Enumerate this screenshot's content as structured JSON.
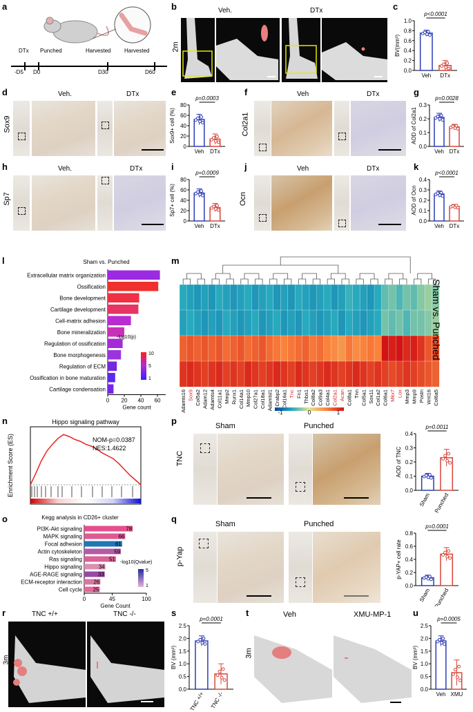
{
  "panel_labels": {
    "a": "a",
    "b": "b",
    "c": "c",
    "d": "d",
    "e": "e",
    "f": "f",
    "g": "g",
    "h": "h",
    "i": "i",
    "j": "j",
    "k": "k",
    "l": "l",
    "m": "m",
    "n": "n",
    "o": "o",
    "p": "p",
    "q": "q",
    "r": "r",
    "s": "s",
    "t": "t",
    "u": "u"
  },
  "panel_a": {
    "events": [
      "DTx",
      "Punched",
      "Harvested",
      "Harvested"
    ],
    "days": [
      "-D5",
      "D0",
      "D30",
      "D60"
    ]
  },
  "panel_b": {
    "row_label": "2m",
    "veh": "Veh.",
    "dtx": "DTx"
  },
  "panel_d": {
    "row_label": "Sox9",
    "veh": "Veh.",
    "dtx": "DTx"
  },
  "panel_f": {
    "row_label": "Col2a1",
    "veh": "Veh",
    "dtx": "DTx"
  },
  "panel_h": {
    "row_label": "Sp7",
    "veh": "Veh.",
    "dtx": "DTx"
  },
  "panel_j": {
    "row_label": "Ocn",
    "veh": "Veh",
    "dtx": "DTx"
  },
  "panel_p": {
    "row_label": "TNC",
    "sham": "Sham",
    "punched": "Punched"
  },
  "panel_q": {
    "row_label": "p-Yap",
    "sham": "Sham",
    "punched": "Punched"
  },
  "panel_r": {
    "row_label": "3m",
    "left": "TNC +/+",
    "right": "TNC -/-"
  },
  "panel_t": {
    "row_label": "3m",
    "left": "Veh",
    "right": "XMU-MP-1"
  },
  "chart_data": [
    {
      "id": "c",
      "type": "bar",
      "categories": [
        "Veh",
        "DTx"
      ],
      "values": [
        0.75,
        0.1
      ],
      "errors": [
        0.06,
        0.1
      ],
      "colors": [
        "#2b3bb5",
        "#d6453a"
      ],
      "ylabel": "BV(mm³)",
      "yticks": [
        "0.0",
        "0.2",
        "0.4",
        "0.6",
        "0.8",
        "1.0"
      ],
      "ylim": [
        0,
        1.0
      ],
      "pval": "p<0.0001"
    },
    {
      "id": "e",
      "type": "bar",
      "categories": [
        "Veh",
        "DTx"
      ],
      "values": [
        52,
        14
      ],
      "errors": [
        10,
        10
      ],
      "colors": [
        "#2b3bb5",
        "#d6453a"
      ],
      "ylabel": "Sox9+ cell (%)",
      "yticks": [
        "0",
        "20",
        "40",
        "60",
        "80"
      ],
      "ylim": [
        0,
        80
      ],
      "pval": "p=0.0003"
    },
    {
      "id": "g",
      "type": "bar",
      "categories": [
        "Veh",
        "DTx"
      ],
      "values": [
        0.21,
        0.14
      ],
      "errors": [
        0.03,
        0.02
      ],
      "colors": [
        "#2b3bb5",
        "#d6453a"
      ],
      "ylabel": "AOD of Col2a1",
      "yticks": [
        "0.0",
        "0.1",
        "0.2",
        "0.3"
      ],
      "ylim": [
        0,
        0.3
      ],
      "pval": "p=0.0028"
    },
    {
      "id": "i",
      "type": "bar",
      "categories": [
        "Veh",
        "DTx"
      ],
      "values": [
        54,
        26
      ],
      "errors": [
        8,
        8
      ],
      "colors": [
        "#2b3bb5",
        "#d6453a"
      ],
      "ylabel": "Sp7+ cell (%)",
      "yticks": [
        "0",
        "20",
        "40",
        "60",
        "80"
      ],
      "ylim": [
        0,
        80
      ],
      "pval": "p=0.0009"
    },
    {
      "id": "k",
      "type": "bar",
      "categories": [
        "Veh",
        "DTx"
      ],
      "values": [
        0.26,
        0.14
      ],
      "errors": [
        0.03,
        0.02
      ],
      "colors": [
        "#2b3bb5",
        "#d6453a"
      ],
      "ylabel": "AOD of Ocn",
      "yticks": [
        "0.0",
        "0.1",
        "0.2",
        "0.3",
        "0.4"
      ],
      "ylim": [
        0,
        0.4
      ],
      "pval": "p<0.0001"
    },
    {
      "id": "l",
      "type": "bar_h",
      "title": "Sham vs. Punched",
      "categories": [
        "Extracellular matrix organization",
        "Ossification",
        "Bone development",
        "Cartilage development",
        "Cell-matrix adhesion",
        "Bone mineralization",
        "Regulation of ossification",
        "Bone morphogenesis",
        "Regulation of ECM",
        "Ossification in bone maturation",
        "Cartilage condensation"
      ],
      "values": [
        63,
        61,
        38,
        37,
        28,
        20,
        18,
        16,
        11,
        9,
        7
      ],
      "colors": [
        "#9b2ae0",
        "#f0302c",
        "#f03045",
        "#e63463",
        "#b92bd3",
        "#c930b8",
        "#a42ad8",
        "#9d33dc",
        "#7628e0",
        "#5a2aee",
        "#7626e6"
      ],
      "xlabel": "Gene count",
      "xticks": [
        "0",
        "20",
        "40",
        "60"
      ],
      "xlim": [
        0,
        70
      ],
      "legend_title": "-log10(p)",
      "legend_ticks": [
        "10",
        "5",
        "1"
      ]
    },
    {
      "id": "m",
      "type": "heatmap",
      "title": "Sham vs. Punched",
      "genes": [
        "Adamts16",
        "Sox9",
        "Col5a2",
        "Adam12",
        "Adamts4",
        "Col11a1",
        "Mmp2",
        "Runx1",
        "Col14a1",
        "Mmp10",
        "Col27a1",
        "Col18a1",
        "Adamtsl1",
        "Crabp2",
        "Col16a1",
        "Tnc",
        "Fn1",
        "Thbs1",
        "Col8a2",
        "Col9a3",
        "Col4a1",
        "Col2a1",
        "Acan",
        "Col8a1",
        "Tnn",
        "Col5a1",
        "Sox11",
        "Col1a2",
        "Col6a1",
        "Mkx7",
        "Lox",
        "Mmp3",
        "Mmp9",
        "Postn",
        "Wnt16",
        "Col6a5"
      ],
      "highlighted": [
        "Sox9",
        "Tnc",
        "Col2a1",
        "Acan",
        "Mkx7",
        "Lox"
      ],
      "colorbar_ticks": [
        "-1",
        "0",
        "1"
      ],
      "values": [
        [
          -0.5,
          -0.55,
          -0.6,
          -0.55,
          -0.6,
          -0.5,
          -0.55,
          -0.6,
          -0.55,
          -0.5,
          -0.6,
          -0.55,
          -0.5,
          -0.6,
          -0.55,
          -0.6,
          -0.5,
          -0.55,
          -0.6,
          -0.55,
          -0.5,
          -0.6,
          -0.55,
          -0.45,
          -0.5,
          -0.55,
          -0.6,
          -0.5,
          -0.35,
          -0.3,
          -0.4,
          -0.3,
          -0.35,
          -0.25,
          -0.2,
          -0.25
        ],
        [
          -0.55,
          -0.5,
          -0.55,
          -0.6,
          -0.55,
          -0.6,
          -0.5,
          -0.55,
          -0.6,
          -0.55,
          -0.5,
          -0.6,
          -0.55,
          -0.5,
          -0.6,
          -0.55,
          -0.6,
          -0.5,
          -0.55,
          -0.6,
          -0.55,
          -0.5,
          -0.6,
          -0.5,
          -0.55,
          -0.6,
          -0.55,
          -0.5,
          -0.3,
          -0.35,
          -0.3,
          -0.4,
          -0.3,
          -0.3,
          -0.25,
          -0.2
        ],
        [
          0.65,
          0.7,
          0.65,
          0.7,
          0.65,
          0.7,
          0.6,
          0.65,
          0.7,
          0.6,
          0.65,
          0.7,
          0.6,
          0.55,
          0.5,
          0.55,
          0.6,
          0.65,
          0.55,
          0.6,
          0.5,
          0.45,
          0.4,
          0.55,
          0.45,
          0.5,
          0.55,
          0.5,
          1.0,
          0.95,
          1.0,
          0.9,
          0.95,
          0.85,
          0.7,
          0.75
        ],
        [
          0.85,
          0.9,
          0.85,
          0.8,
          0.85,
          0.9,
          0.8,
          0.85,
          0.8,
          0.9,
          0.85,
          0.8,
          0.85,
          0.9,
          0.85,
          0.8,
          0.9,
          0.85,
          0.8,
          0.85,
          0.9,
          0.85,
          0.8,
          0.85,
          0.9,
          0.85,
          0.8,
          0.85,
          0.8,
          0.75,
          0.8,
          0.85,
          0.8,
          0.75,
          0.7,
          0.65
        ]
      ]
    },
    {
      "id": "n",
      "type": "line",
      "title": "Hippo signaling pathway",
      "ylabel": "Enrichment Score (ES)",
      "annot1": "NOM-p=0.0387",
      "annot2": "NES:1.4622",
      "x": [
        0,
        1,
        2,
        3,
        4,
        5,
        6,
        7,
        8,
        9,
        10,
        11,
        12,
        13,
        14,
        15,
        16,
        17,
        18,
        19,
        20
      ],
      "y": [
        0,
        0.12,
        0.25,
        0.35,
        0.42,
        0.48,
        0.52,
        0.5,
        0.47,
        0.45,
        0.42,
        0.4,
        0.37,
        0.33,
        0.3,
        0.27,
        0.22,
        0.16,
        0.1,
        0.05,
        0
      ]
    },
    {
      "id": "o",
      "type": "bar_h",
      "title": "Kegg analysis in CD26+ cluster",
      "categories": [
        "PI3K-Akt signaling",
        "MAPK signaling",
        "Focal adhesion",
        "Actin cytoskeleton",
        "Ras signaling",
        "Hippo signaling",
        "AGE-RAGE signaling",
        "ECM-receptor interaction",
        "Cell cycle"
      ],
      "values": [
        78,
        66,
        61,
        59,
        51,
        34,
        33,
        26,
        25
      ],
      "colors": [
        "#e4508d",
        "#dd5a92",
        "#1f77b4",
        "#b55aa6",
        "#d96196",
        "#d98fb4",
        "#9a48a5",
        "#d8779f",
        "#e26a9a"
      ],
      "xlabel": "Gene Count",
      "xticks": [
        "0",
        "45",
        "100"
      ],
      "xlim": [
        0,
        100
      ],
      "legend_title": "-log10(Qvalue)",
      "legend_ticks": [
        "5",
        "1"
      ]
    },
    {
      "id": "p",
      "type": "bar",
      "categories": [
        "Sham",
        "Punched"
      ],
      "values": [
        0.1,
        0.23
      ],
      "errors": [
        0.02,
        0.06
      ],
      "colors": [
        "#2b3bb5",
        "#d6453a"
      ],
      "ylabel": "AOD of TNC",
      "yticks": [
        "0.0",
        "0.1",
        "0.2",
        "0.3",
        "0.4"
      ],
      "ylim": [
        0,
        0.4
      ],
      "pval": "p=0.0011"
    },
    {
      "id": "q",
      "type": "bar",
      "categories": [
        "Sham",
        "Punched"
      ],
      "values": [
        0.12,
        0.48
      ],
      "errors": [
        0.04,
        0.1
      ],
      "colors": [
        "#2b3bb5",
        "#d6453a"
      ],
      "ylabel": "p-YAP+ cell rate",
      "yticks": [
        "0.0",
        "0.2",
        "0.4",
        "0.6",
        "0.8"
      ],
      "ylim": [
        0,
        0.8
      ],
      "pval": "p=0.0001"
    },
    {
      "id": "s",
      "type": "bar",
      "categories": [
        "TNC +/+",
        "TNC -/-"
      ],
      "values": [
        1.9,
        0.6
      ],
      "errors": [
        0.2,
        0.4
      ],
      "colors": [
        "#2b3bb5",
        "#d6453a"
      ],
      "ylabel": "BV (mm³)",
      "yticks": [
        "0.0",
        "0.5",
        "1.0",
        "1.5",
        "2.0",
        "2.5"
      ],
      "ylim": [
        0,
        2.5
      ],
      "pval": "p=0.0001"
    },
    {
      "id": "u",
      "type": "bar",
      "categories": [
        "Veh",
        "XMU"
      ],
      "values": [
        1.9,
        0.65
      ],
      "errors": [
        0.2,
        0.5
      ],
      "colors": [
        "#2b3bb5",
        "#d6453a"
      ],
      "ylabel": "BV (mm³)",
      "yticks": [
        "0.0",
        "0.5",
        "1.0",
        "1.5",
        "2.0",
        "2.5"
      ],
      "ylim": [
        0,
        2.5
      ],
      "pval": "p=0.0005"
    }
  ]
}
